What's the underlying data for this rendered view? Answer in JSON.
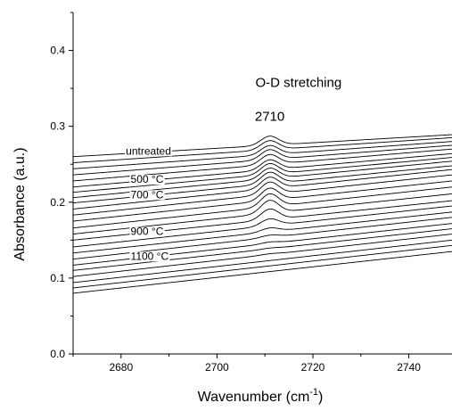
{
  "chart_data": {
    "type": "line",
    "xlabel": "Wavenumber  (cm",
    "xlabel_sup": "-1",
    "xlabel_suffix": ")",
    "ylabel": "Absorbance  (a.u.)",
    "xlim": [
      2670,
      2749
    ],
    "ylim": [
      0.0,
      0.45
    ],
    "xticks": [
      2680,
      2700,
      2720,
      2740
    ],
    "yticks": [
      0.0,
      0.1,
      0.2,
      0.3,
      0.4
    ],
    "ytick_labels": [
      "0.0",
      "0.1",
      "0.2",
      "0.3",
      "0.4"
    ],
    "grid": false,
    "annotations": [
      {
        "text": "O-D stretching",
        "x": 2717,
        "y": 0.352
      },
      {
        "text": "2710",
        "x": 2711,
        "y": 0.307
      }
    ],
    "peak": {
      "center": 2711,
      "width": 2.6
    },
    "series": [
      {
        "name": "untreated",
        "start": 0.26,
        "end": 0.289,
        "peak": 0.012
      },
      {
        "start": 0.252,
        "end": 0.285,
        "peak": 0.012
      },
      {
        "start": 0.244,
        "end": 0.28,
        "peak": 0.012
      },
      {
        "start": 0.236,
        "end": 0.275,
        "peak": 0.013
      },
      {
        "start": 0.228,
        "end": 0.27,
        "peak": 0.013
      },
      {
        "name": "500 °C",
        "start": 0.22,
        "end": 0.264,
        "peak": 0.013
      },
      {
        "start": 0.213,
        "end": 0.259,
        "peak": 0.014
      },
      {
        "start": 0.206,
        "end": 0.254,
        "peak": 0.014
      },
      {
        "name": "700 °C",
        "start": 0.199,
        "end": 0.248,
        "peak": 0.015
      },
      {
        "start": 0.191,
        "end": 0.243,
        "peak": 0.015
      },
      {
        "start": 0.183,
        "end": 0.236,
        "peak": 0.016
      },
      {
        "start": 0.175,
        "end": 0.228,
        "peak": 0.016
      },
      {
        "start": 0.166,
        "end": 0.22,
        "peak": 0.017
      },
      {
        "start": 0.158,
        "end": 0.211,
        "peak": 0.017
      },
      {
        "name": "900 °C",
        "start": 0.15,
        "end": 0.202,
        "peak": 0.014
      },
      {
        "start": 0.141,
        "end": 0.195,
        "peak": 0.009
      },
      {
        "start": 0.133,
        "end": 0.187,
        "peak": 0.005
      },
      {
        "start": 0.125,
        "end": 0.18,
        "peak": 0.003
      },
      {
        "name": "1100 °C",
        "start": 0.117,
        "end": 0.172,
        "peak": 0.002
      },
      {
        "start": 0.11,
        "end": 0.165,
        "peak": 0.001
      },
      {
        "start": 0.102,
        "end": 0.158,
        "peak": 0.001
      },
      {
        "start": 0.094,
        "end": 0.15,
        "peak": 0.0
      },
      {
        "start": 0.087,
        "end": 0.143,
        "peak": 0.0
      },
      {
        "start": 0.08,
        "end": 0.135,
        "peak": 0.0
      }
    ],
    "series_labels": [
      {
        "text": "untreated",
        "series": 0,
        "x": 2681
      },
      {
        "text": "500 °C",
        "series": 5,
        "x": 2682
      },
      {
        "text": "700 °C",
        "series": 8,
        "x": 2682
      },
      {
        "text": "900 °C",
        "series": 14,
        "x": 2682
      },
      {
        "text": "1100 °C",
        "series": 18,
        "x": 2682
      }
    ]
  }
}
